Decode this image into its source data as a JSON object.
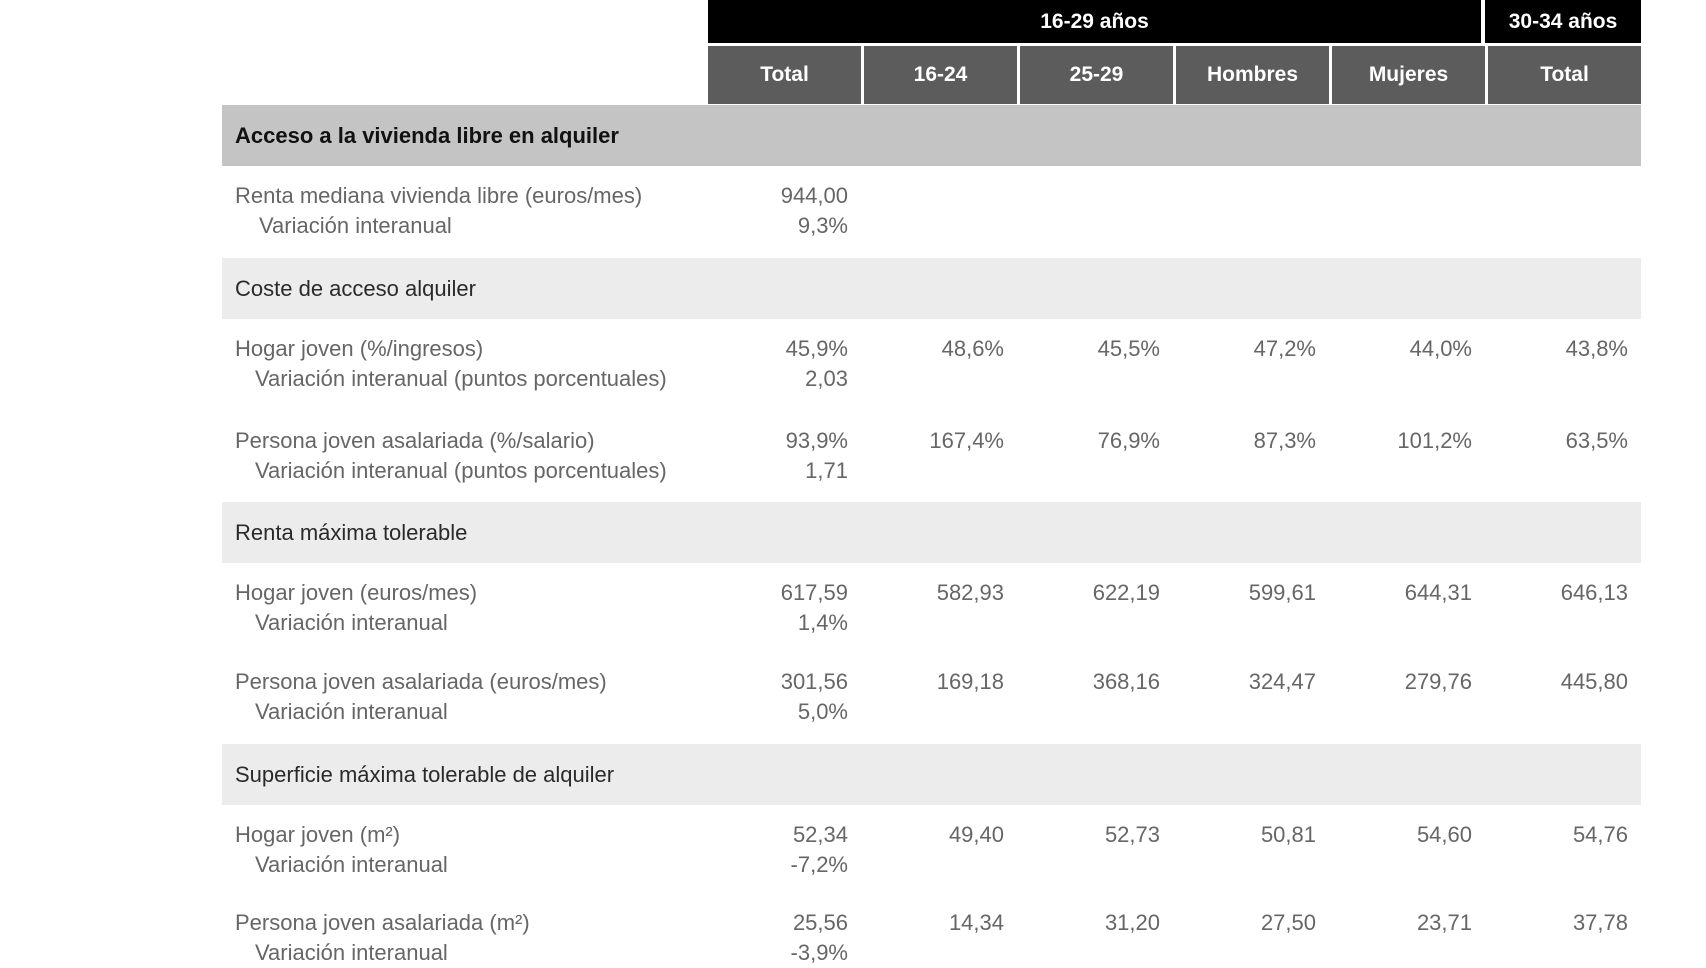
{
  "header": {
    "group_1": "16-29 años",
    "group_2": "30-34 años",
    "columns": [
      "Total",
      "16-24",
      "25-29",
      "Hombres",
      "Mujeres",
      "Total"
    ]
  },
  "sections": {
    "main": "Acceso a la vivienda libre en alquiler",
    "coste": "Coste de acceso alquiler",
    "renta": "Renta máxima tolerable",
    "superficie": "Superficie máxima tolerable de alquiler"
  },
  "rows": [
    {
      "label": "Renta mediana vivienda libre (euros/mes)",
      "sublabel": "Variación interanual",
      "values": [
        "944,00",
        "",
        "",
        "",
        "",
        ""
      ],
      "sub_value": "9,3%"
    },
    {
      "label": "Hogar joven (%/ingresos)",
      "sublabel": "Variación interanual (puntos porcentuales)",
      "values": [
        "45,9%",
        "48,6%",
        "45,5%",
        "47,2%",
        "44,0%",
        "43,8%"
      ],
      "sub_value": "2,03"
    },
    {
      "label": "Persona joven asalariada (%/salario)",
      "sublabel": "Variación interanual (puntos porcentuales)",
      "values": [
        "93,9%",
        "167,4%",
        "76,9%",
        "87,3%",
        "101,2%",
        "63,5%"
      ],
      "sub_value": "1,71"
    },
    {
      "label": "Hogar joven (euros/mes)",
      "sublabel": "Variación interanual",
      "values": [
        "617,59",
        "582,93",
        "622,19",
        "599,61",
        "644,31",
        "646,13"
      ],
      "sub_value": "1,4%"
    },
    {
      "label": "Persona joven asalariada (euros/mes)",
      "sublabel": "Variación interanual",
      "values": [
        "301,56",
        "169,18",
        "368,16",
        "324,47",
        "279,76",
        "445,80"
      ],
      "sub_value": "5,0%"
    },
    {
      "label": "Hogar joven (m²)",
      "sublabel": "Variación interanual",
      "values": [
        "52,34",
        "49,40",
        "52,73",
        "50,81",
        "54,60",
        "54,76"
      ],
      "sub_value": "-7,2%"
    },
    {
      "label": "Persona joven asalariada (m²)",
      "sublabel": "Variación interanual",
      "values": [
        "25,56",
        "14,34",
        "31,20",
        "27,50",
        "23,71",
        "37,78"
      ],
      "sub_value": "-3,9%"
    }
  ]
}
